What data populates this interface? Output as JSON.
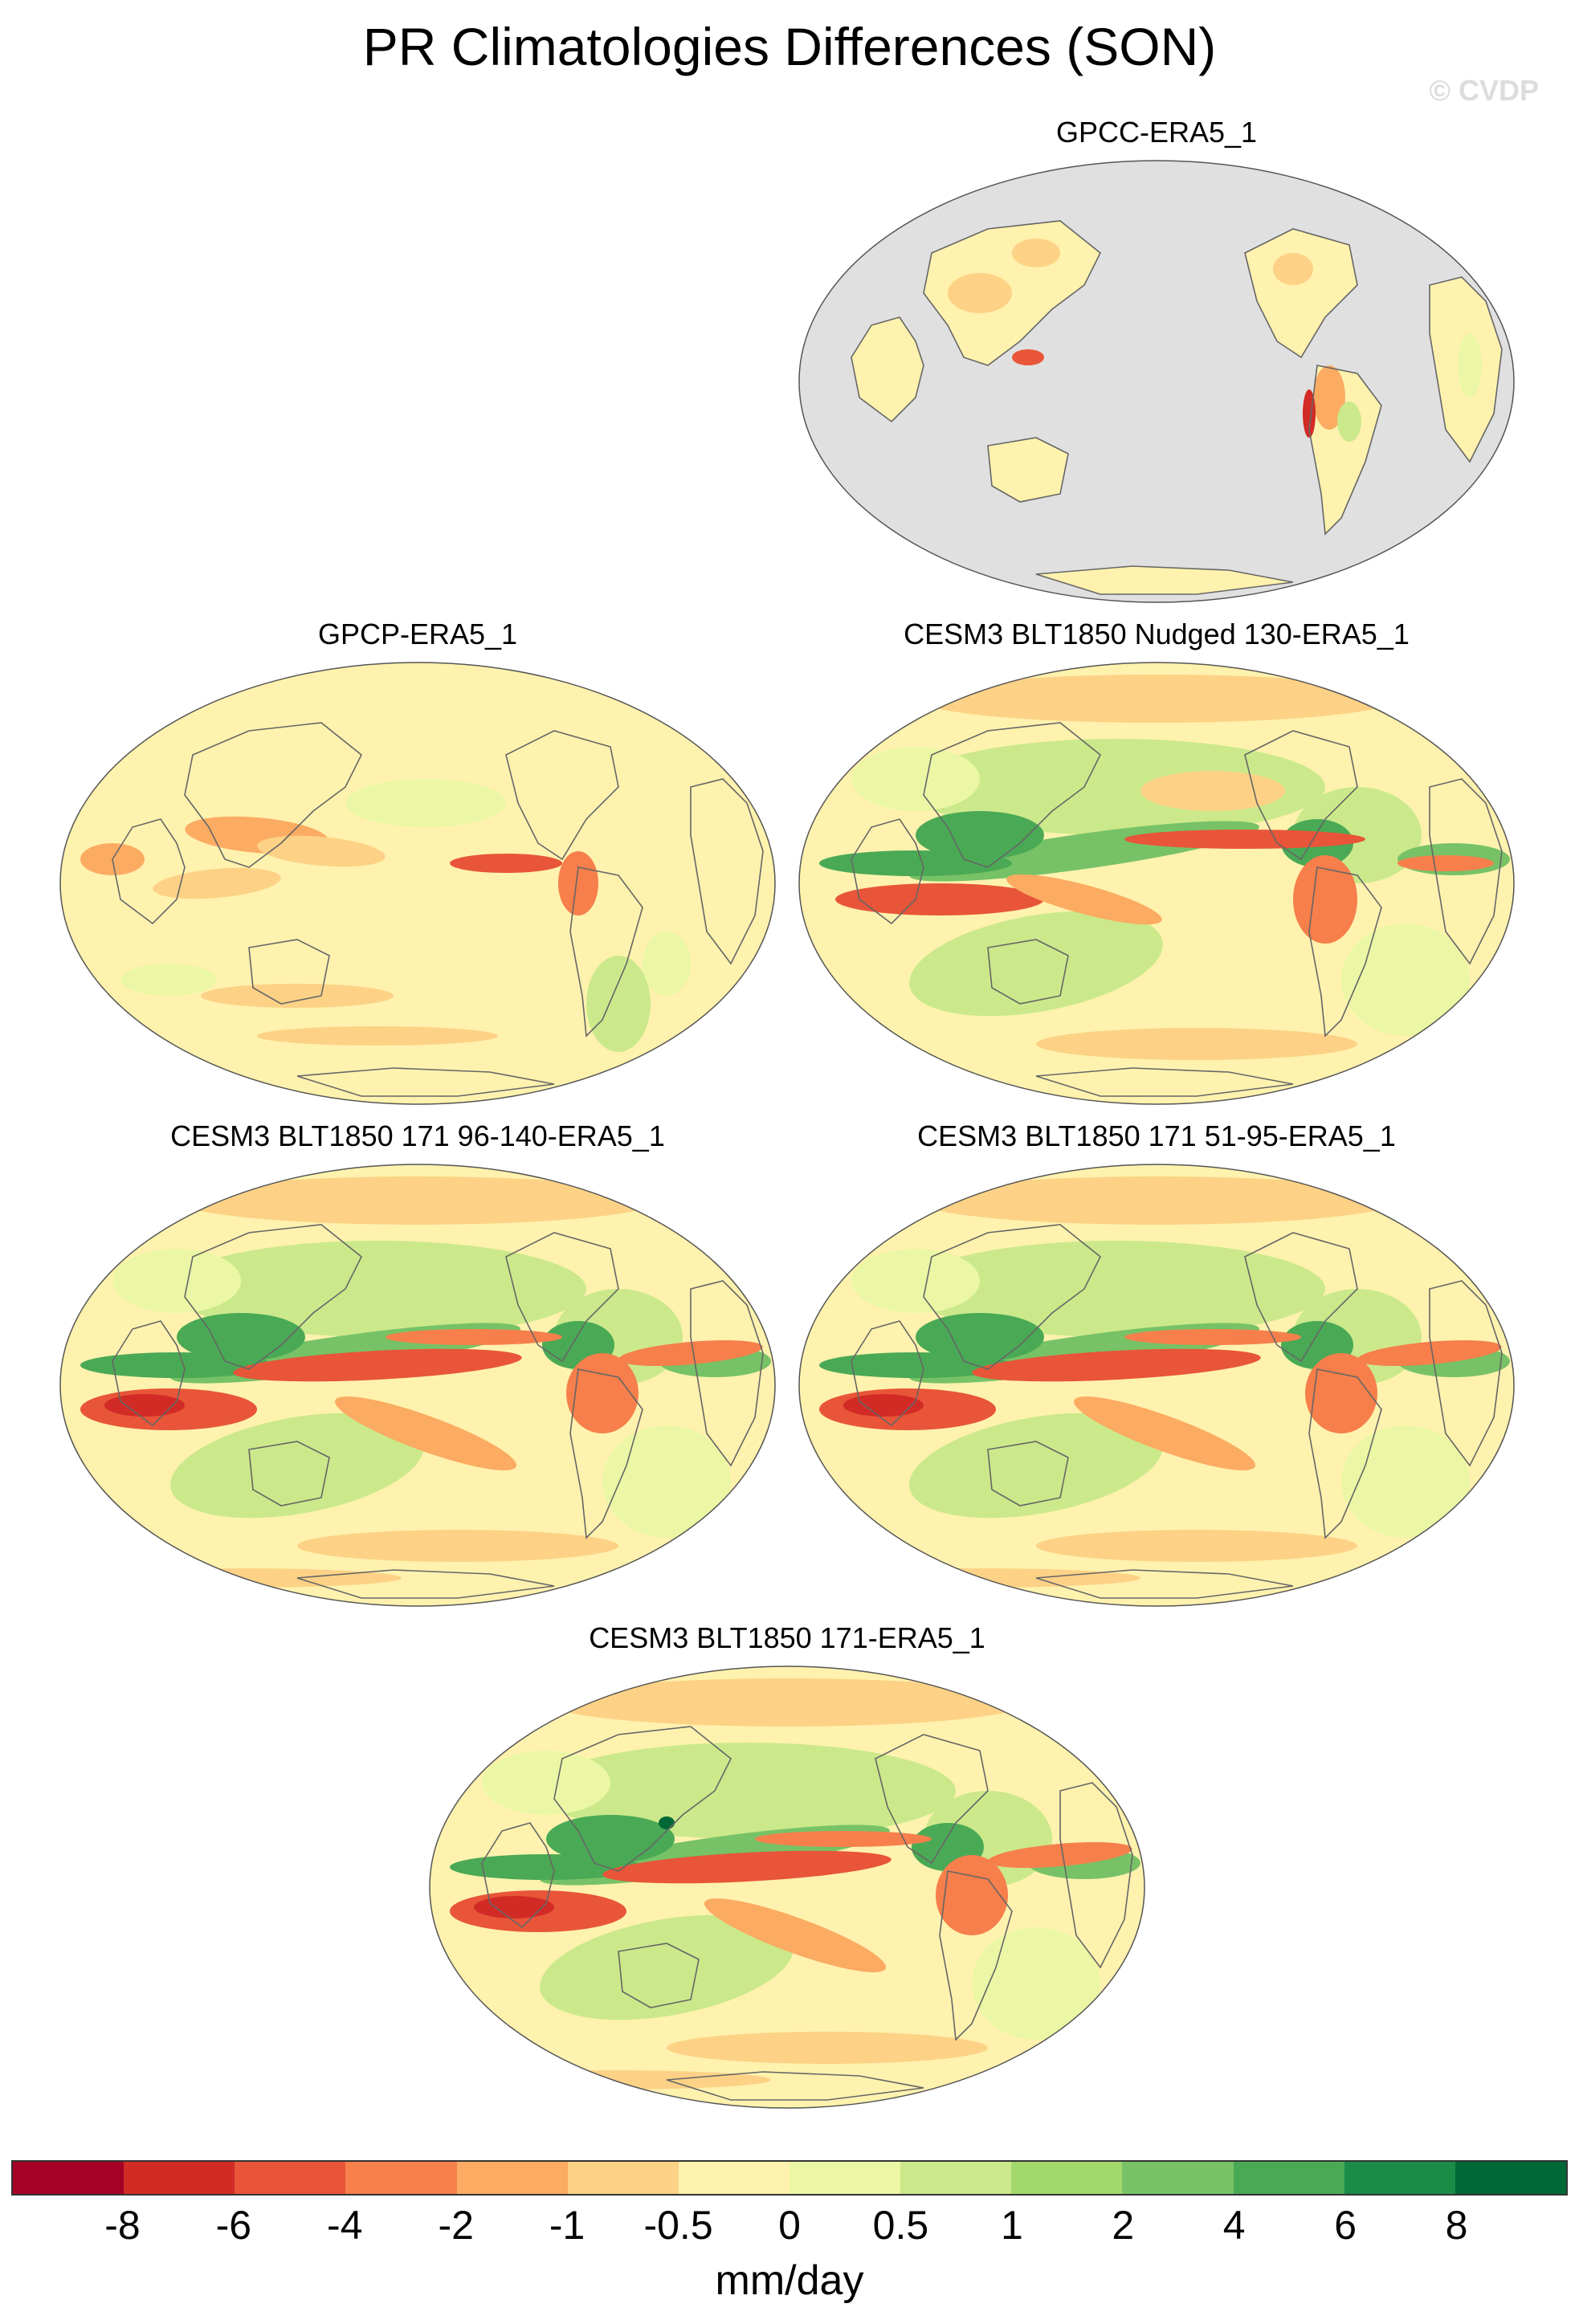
{
  "title": "PR Climatologies Differences (SON)",
  "watermark": "© CVDP",
  "colors": {
    "ocean_mask": "#e0e0e0",
    "land_line": "#666666",
    "neutral": "#fff3b0"
  },
  "panels": [
    {
      "id": "gpcc",
      "title": "GPCC-ERA5_1",
      "ocean_masked": true
    },
    {
      "id": "gpcp",
      "title": "GPCP-ERA5_1",
      "ocean_masked": false
    },
    {
      "id": "nudged",
      "title": "CESM3 BLT1850 Nudged 130-ERA5_1",
      "ocean_masked": false
    },
    {
      "id": "r96",
      "title": "CESM3 BLT1850 171 96-140-ERA5_1",
      "ocean_masked": false
    },
    {
      "id": "r51",
      "title": "CESM3 BLT1850 171 51-95-ERA5_1",
      "ocean_masked": false
    },
    {
      "id": "r171",
      "title": "CESM3 BLT1850 171-ERA5_1",
      "ocean_masked": false
    }
  ],
  "colorbar": {
    "colors": [
      "#a50026",
      "#d22b26",
      "#e85538",
      "#f67f4b",
      "#fbab62",
      "#fdd286",
      "#fff2ae",
      "#ecf7a5",
      "#cbe98b",
      "#a3d86d",
      "#77c266",
      "#4aa955",
      "#1a8c48",
      "#006837"
    ],
    "ticks": [
      "-8",
      "-6",
      "-4",
      "-2",
      "-1",
      "-0.5",
      "0",
      "0.5",
      "1",
      "2",
      "4",
      "6",
      "8"
    ],
    "unit": "mm/day"
  }
}
